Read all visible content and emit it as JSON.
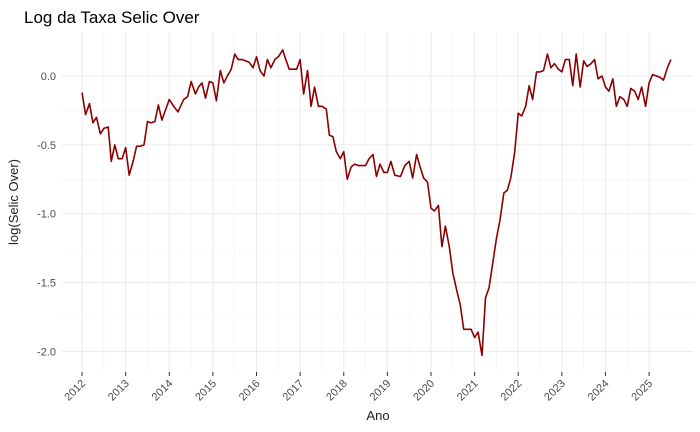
{
  "chart_data": {
    "type": "line",
    "title": "Log da Taxa Selic Over",
    "x_label": "Ano",
    "y_label": "log(Selic Over)",
    "grid": true,
    "xlim": [
      2011.54,
      2026.03
    ],
    "xticks": [
      2012,
      2013,
      2014,
      2015,
      2016,
      2017,
      2018,
      2019,
      2020,
      2021,
      2022,
      2023,
      2024,
      2025
    ],
    "ylim": [
      -2.15,
      0.32
    ],
    "yticks": [
      {
        "value": 0,
        "label": "0.0"
      },
      -0.5,
      {
        "value": -1,
        "label": "-1.0"
      },
      -1.5,
      {
        "value": -2,
        "label": "-2.0"
      }
    ],
    "x": [
      2012.0,
      2012.08,
      2012.17,
      2012.25,
      2012.33,
      2012.42,
      2012.5,
      2012.6,
      2012.67,
      2012.75,
      2012.83,
      2012.92,
      2013.0,
      2013.08,
      2013.17,
      2013.25,
      2013.33,
      2013.42,
      2013.5,
      2013.58,
      2013.67,
      2013.75,
      2013.83,
      2013.92,
      2014.0,
      2014.1,
      2014.2,
      2014.33,
      2014.42,
      2014.5,
      2014.6,
      2014.67,
      2014.75,
      2014.83,
      2014.92,
      2015.0,
      2015.08,
      2015.17,
      2015.25,
      2015.33,
      2015.42,
      2015.5,
      2015.58,
      2015.67,
      2015.83,
      2015.92,
      2016.0,
      2016.08,
      2016.17,
      2016.25,
      2016.33,
      2016.42,
      2016.5,
      2016.6,
      2016.67,
      2016.75,
      2016.92,
      2017.0,
      2017.08,
      2017.17,
      2017.25,
      2017.33,
      2017.42,
      2017.5,
      2017.6,
      2017.67,
      2017.75,
      2017.83,
      2017.92,
      2018.0,
      2018.08,
      2018.17,
      2018.25,
      2018.33,
      2018.5,
      2018.58,
      2018.67,
      2018.75,
      2018.83,
      2018.92,
      2019.0,
      2019.08,
      2019.17,
      2019.3,
      2019.4,
      2019.5,
      2019.58,
      2019.67,
      2019.75,
      2019.83,
      2019.92,
      2020.0,
      2020.08,
      2020.17,
      2020.25,
      2020.33,
      2020.42,
      2020.5,
      2020.6,
      2020.67,
      2020.75,
      2020.92,
      2021.0,
      2021.08,
      2021.17,
      2021.25,
      2021.33,
      2021.42,
      2021.5,
      2021.58,
      2021.67,
      2021.75,
      2021.83,
      2021.92,
      2022.0,
      2022.08,
      2022.17,
      2022.25,
      2022.33,
      2022.42,
      2022.5,
      2022.58,
      2022.67,
      2022.75,
      2022.83,
      2022.92,
      2023.0,
      2023.08,
      2023.17,
      2023.25,
      2023.33,
      2023.42,
      2023.5,
      2023.58,
      2023.67,
      2023.75,
      2023.83,
      2023.92,
      2024.0,
      2024.08,
      2024.17,
      2024.25,
      2024.33,
      2024.42,
      2024.5,
      2024.58,
      2024.67,
      2024.75,
      2024.83,
      2024.92,
      2025.0,
      2025.08,
      2025.17,
      2025.25,
      2025.33,
      2025.42,
      2025.5
    ],
    "series": [
      {
        "color": "#8b0000",
        "values": [
          -0.12,
          -0.28,
          -0.2,
          -0.34,
          -0.3,
          -0.42,
          -0.38,
          -0.37,
          -0.62,
          -0.5,
          -0.6,
          -0.6,
          -0.52,
          -0.72,
          -0.62,
          -0.51,
          -0.51,
          -0.5,
          -0.33,
          -0.34,
          -0.33,
          -0.21,
          -0.32,
          -0.24,
          -0.17,
          -0.22,
          -0.26,
          -0.17,
          -0.15,
          -0.04,
          -0.13,
          -0.08,
          -0.05,
          -0.16,
          -0.04,
          -0.05,
          -0.18,
          0.04,
          -0.05,
          0.0,
          0.05,
          0.16,
          0.12,
          0.12,
          0.1,
          0.06,
          0.14,
          0.04,
          0.0,
          0.12,
          0.06,
          0.12,
          0.14,
          0.19,
          0.12,
          0.05,
          0.05,
          0.12,
          -0.13,
          0.04,
          -0.22,
          -0.08,
          -0.22,
          -0.22,
          -0.24,
          -0.43,
          -0.44,
          -0.55,
          -0.6,
          -0.55,
          -0.75,
          -0.66,
          -0.64,
          -0.65,
          -0.65,
          -0.6,
          -0.57,
          -0.73,
          -0.64,
          -0.7,
          -0.7,
          -0.62,
          -0.72,
          -0.73,
          -0.65,
          -0.62,
          -0.74,
          -0.57,
          -0.66,
          -0.74,
          -0.77,
          -0.96,
          -0.98,
          -0.94,
          -1.24,
          -1.09,
          -1.24,
          -1.43,
          -1.57,
          -1.66,
          -1.84,
          -1.84,
          -1.9,
          -1.86,
          -2.03,
          -1.61,
          -1.54,
          -1.35,
          -1.18,
          -1.05,
          -0.85,
          -0.83,
          -0.74,
          -0.55,
          -0.27,
          -0.29,
          -0.22,
          -0.07,
          -0.17,
          0.03,
          0.03,
          0.04,
          0.16,
          0.06,
          0.09,
          0.05,
          0.03,
          0.12,
          0.12,
          -0.07,
          0.16,
          -0.08,
          0.11,
          0.07,
          0.09,
          0.12,
          -0.02,
          0.0,
          -0.08,
          -0.11,
          -0.02,
          -0.22,
          -0.15,
          -0.17,
          -0.22,
          -0.09,
          -0.11,
          -0.17,
          -0.08,
          -0.22,
          -0.05,
          0.01,
          0.0,
          -0.01,
          -0.03,
          0.06,
          0.12
        ]
      }
    ]
  }
}
